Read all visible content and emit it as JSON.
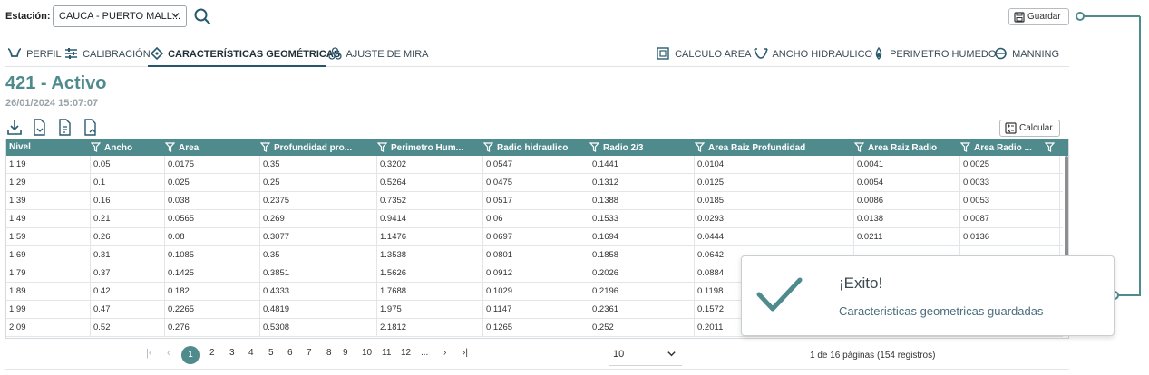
{
  "header": {
    "station_label": "Estación:",
    "station_value": "CAUCA - PUERTO MALL...",
    "save_label": "Guardar"
  },
  "tabs_left": [
    {
      "label": "PERFIL",
      "icon": "channel-icon"
    },
    {
      "label": "CALIBRACIÓN",
      "icon": "sliders-icon"
    },
    {
      "label": "CARACTERÍSTICAS GEOMÉTRICAS",
      "icon": "geometry-icon",
      "active": true
    },
    {
      "label": "AJUSTE DE MIRA",
      "icon": "gauge-adjust-icon"
    }
  ],
  "tabs_right": [
    {
      "label": "CALCULO AREA",
      "icon": "area-icon"
    },
    {
      "label": "ANCHO HIDRAULICO",
      "icon": "hydraulic-width-icon"
    },
    {
      "label": "PERIMETRO HUMEDO",
      "icon": "wet-perimeter-icon"
    },
    {
      "label": "MANNING",
      "icon": "manning-icon"
    }
  ],
  "record": {
    "title": "421 - Activo",
    "date": "26/01/2024 15:07:07"
  },
  "toolbar": {
    "calc_label": "Calcular",
    "icons": [
      "download-icon",
      "file-export-icon",
      "file-import-icon",
      "file-upload-icon"
    ]
  },
  "table": {
    "columns": [
      "Nivel",
      "Ancho",
      "Area",
      "Profundidad pro...",
      "Perimetro Hum...",
      "Radio hidraulico",
      "Radio 2/3",
      "Area Raiz Profundidad",
      "Area Raiz Radio",
      "Area Radio ..."
    ],
    "rows": [
      [
        "1.19",
        "0.05",
        "0.0175",
        "0.35",
        "0.3202",
        "0.0547",
        "0.1441",
        "0.0104",
        "0.0041",
        "0.0025"
      ],
      [
        "1.29",
        "0.1",
        "0.025",
        "0.25",
        "0.5264",
        "0.0475",
        "0.1312",
        "0.0125",
        "0.0054",
        "0.0033"
      ],
      [
        "1.39",
        "0.16",
        "0.038",
        "0.2375",
        "0.7352",
        "0.0517",
        "0.1388",
        "0.0185",
        "0.0086",
        "0.0053"
      ],
      [
        "1.49",
        "0.21",
        "0.0565",
        "0.269",
        "0.9414",
        "0.06",
        "0.1533",
        "0.0293",
        "0.0138",
        "0.0087"
      ],
      [
        "1.59",
        "0.26",
        "0.08",
        "0.3077",
        "1.1476",
        "0.0697",
        "0.1694",
        "0.0444",
        "0.0211",
        "0.0136"
      ],
      [
        "1.69",
        "0.31",
        "0.1085",
        "0.35",
        "1.3538",
        "0.0801",
        "0.1858",
        "0.0642",
        "",
        ""
      ],
      [
        "1.79",
        "0.37",
        "0.1425",
        "0.3851",
        "1.5626",
        "0.0912",
        "0.2026",
        "0.0884",
        "",
        ""
      ],
      [
        "1.89",
        "0.42",
        "0.182",
        "0.4333",
        "1.7688",
        "0.1029",
        "0.2196",
        "0.1198",
        "",
        ""
      ],
      [
        "1.99",
        "0.47",
        "0.2265",
        "0.4819",
        "1.975",
        "0.1147",
        "0.2361",
        "0.1572",
        "",
        ""
      ],
      [
        "2.09",
        "0.52",
        "0.276",
        "0.5308",
        "2.1812",
        "0.1265",
        "0.252",
        "0.2011",
        "",
        ""
      ]
    ]
  },
  "pagination": {
    "pages": [
      "1",
      "2",
      "3",
      "4",
      "5",
      "6",
      "7",
      "8",
      "9",
      "10",
      "11",
      "12",
      "..."
    ],
    "current": "1",
    "page_size": "10",
    "info": "1 de 16 páginas (154 registros)"
  },
  "toast": {
    "title": "¡Exito!",
    "message": "Caracteristicas geometricas guardadas"
  },
  "colors": {
    "accent": "#4f8a8d",
    "tab_underline": "#26566a",
    "header_bg": "#4f8a8d"
  }
}
